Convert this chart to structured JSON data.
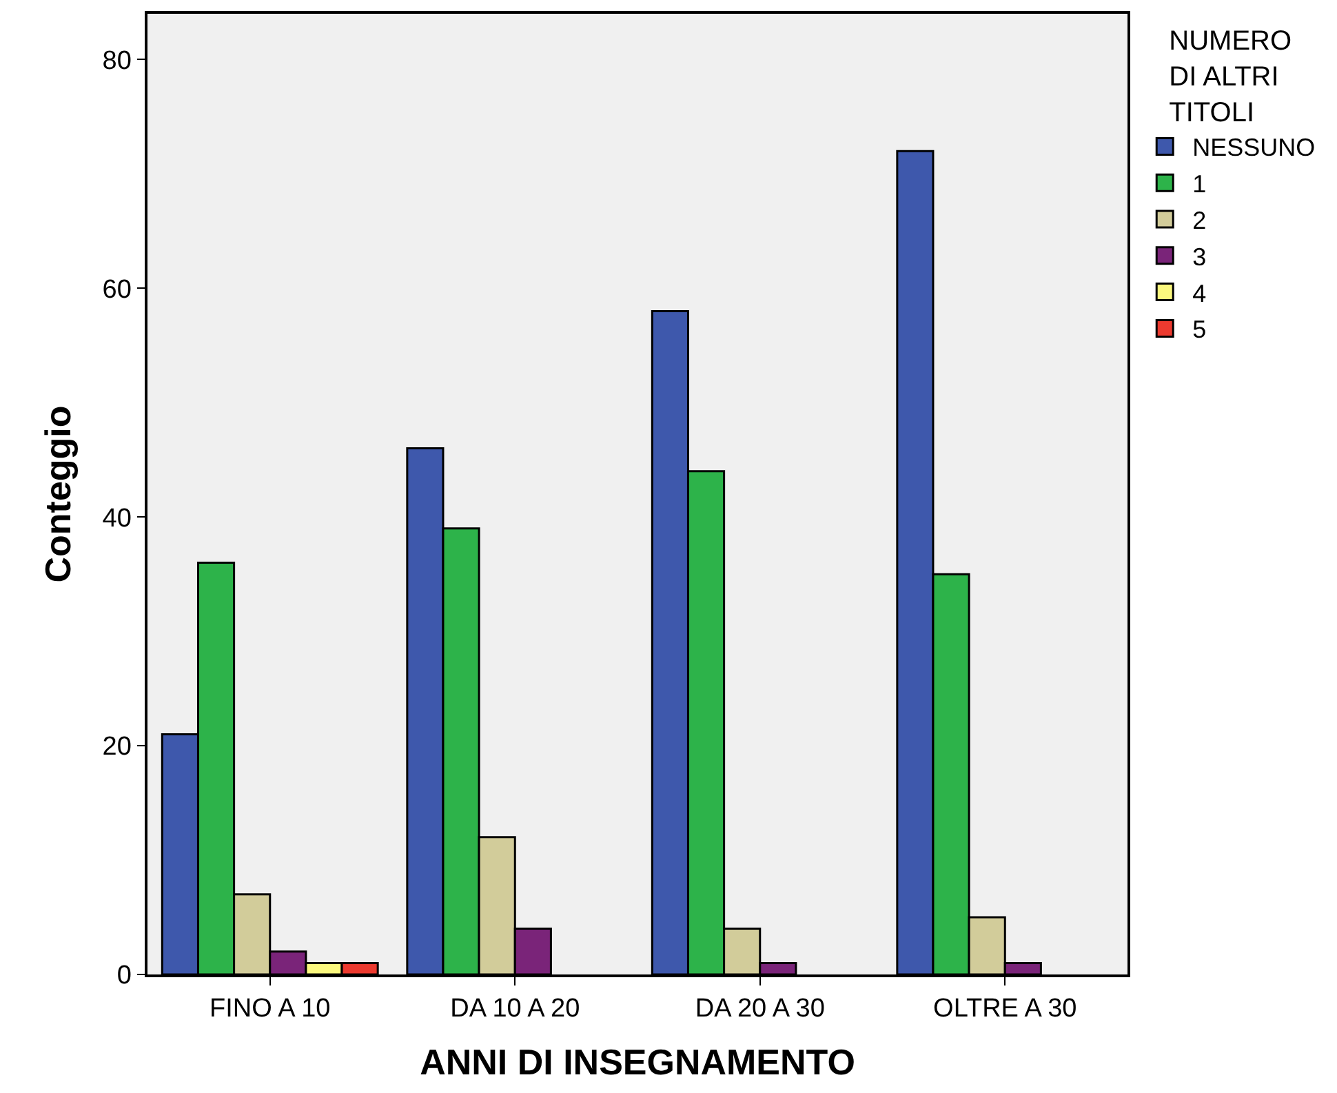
{
  "chart_data": {
    "type": "bar",
    "xlabel": "ANNI DI INSEGNAMENTO",
    "ylabel": "Conteggio",
    "legend_title": "NUMERO DI ALTRI TITOLI",
    "categories": [
      "FINO A 10",
      "DA 10 A 20",
      "DA 20 A 30",
      "OLTRE A 30"
    ],
    "series": [
      {
        "name": "NESSUNO",
        "color": "#3e58ac",
        "values": [
          21,
          46,
          58,
          72
        ]
      },
      {
        "name": "1",
        "color": "#2db34a",
        "values": [
          36,
          39,
          44,
          35
        ]
      },
      {
        "name": "2",
        "color": "#d2cc9a",
        "values": [
          7,
          12,
          4,
          5
        ]
      },
      {
        "name": "3",
        "color": "#7a2479",
        "values": [
          2,
          4,
          1,
          1
        ]
      },
      {
        "name": "4",
        "color": "#fbf87e",
        "values": [
          1,
          null,
          null,
          null
        ]
      },
      {
        "name": "5",
        "color": "#ec3a2f",
        "values": [
          1,
          null,
          null,
          null
        ]
      }
    ],
    "ylim": [
      0,
      84
    ],
    "yticks": [
      0,
      20,
      40,
      60,
      80
    ],
    "grid": false,
    "legend": "top right"
  }
}
